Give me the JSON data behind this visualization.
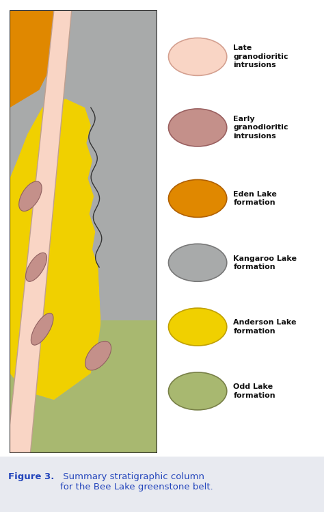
{
  "fig_width": 4.74,
  "fig_height": 7.48,
  "dpi": 100,
  "legend_entries": [
    {
      "label": "Late\ngranodioritic\nintrusions",
      "fill": "#f9d5c5",
      "edge": "#d4a090"
    },
    {
      "label": "Early\ngranodioritic\nintrusions",
      "fill": "#c4908a",
      "edge": "#9a6060"
    },
    {
      "label": "Eden Lake\nformation",
      "fill": "#e08800",
      "edge": "#b06000"
    },
    {
      "label": "Kangaroo Lake\nformation",
      "fill": "#a8aaaa",
      "edge": "#787878"
    },
    {
      "label": "Anderson Lake\nformation",
      "fill": "#f0d000",
      "edge": "#c0a000"
    },
    {
      "label": "Odd Lake\nformation",
      "fill": "#a8b870",
      "edge": "#788048"
    }
  ],
  "caption_bold": "Figure 3.",
  "caption_rest": " Summary stratigraphic column\nfor the Bee Lake greenstone belt.",
  "caption_color": "#2244bb",
  "caption_bg": "#e8eaf0",
  "background_color": "#ffffff",
  "border_color": "#222222",
  "colors": {
    "late_gran": "#f9d5c5",
    "early_gran": "#c4908a",
    "eden": "#e08800",
    "kangaroo": "#a8aaaa",
    "anderson": "#f0d000",
    "odd": "#a8b870"
  }
}
